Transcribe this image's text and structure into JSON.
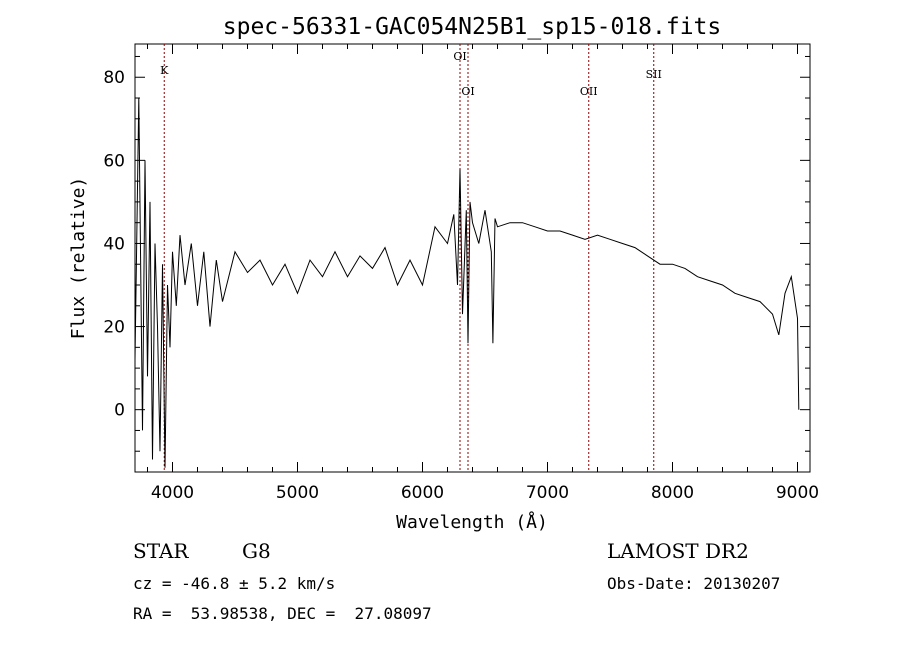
{
  "chart_data": {
    "type": "line",
    "title": "spec-56331-GAC054N25B1_sp15-018.fits",
    "xlabel": "Wavelength (Å)",
    "ylabel": "Flux (relative)",
    "xlim": [
      3700,
      9100
    ],
    "ylim": [
      -15,
      88
    ],
    "x_ticks": [
      4000,
      5000,
      6000,
      7000,
      8000,
      9000
    ],
    "y_ticks": [
      0,
      20,
      40,
      60,
      80
    ],
    "grid": false,
    "line_color": "#000000",
    "marker_color": "#8b0000",
    "lines": [
      {
        "label": "K",
        "wavelength": 3934
      },
      {
        "label": "OI",
        "wavelength": 6300
      },
      {
        "label": "OI",
        "wavelength": 6364
      },
      {
        "label": "OII",
        "wavelength": 7330
      },
      {
        "label": "SII",
        "wavelength": 7850
      }
    ],
    "series": [
      {
        "x": [
          3700,
          3730,
          3760,
          3780,
          3800,
          3820,
          3840,
          3860,
          3880,
          3900,
          3920,
          3940,
          3960,
          3980,
          4000,
          4030,
          4060,
          4100,
          4150,
          4200,
          4250,
          4300,
          4350,
          4400,
          4500,
          4600,
          4700,
          4800,
          4900,
          5000,
          5100,
          5200,
          5300,
          5400,
          5500,
          5600,
          5700,
          5800,
          5900,
          6000,
          6100,
          6200,
          6250,
          6280,
          6300,
          6320,
          6350,
          6364,
          6380,
          6400,
          6450,
          6500,
          6550,
          6563,
          6580,
          6600,
          6700,
          6800,
          6900,
          7000,
          7100,
          7200,
          7300,
          7400,
          7500,
          7600,
          7700,
          7800,
          7900,
          8000,
          8100,
          8200,
          8300,
          8400,
          8500,
          8600,
          8700,
          8800,
          8850,
          8900,
          8950,
          9000,
          9010
        ],
        "y": [
          12,
          75,
          -5,
          60,
          8,
          50,
          -12,
          40,
          20,
          -10,
          35,
          -14,
          30,
          15,
          38,
          25,
          42,
          30,
          40,
          25,
          38,
          20,
          36,
          26,
          38,
          33,
          36,
          30,
          35,
          28,
          36,
          32,
          38,
          32,
          37,
          34,
          39,
          30,
          36,
          30,
          44,
          40,
          47,
          30,
          58,
          23,
          48,
          16,
          50,
          45,
          40,
          48,
          38,
          16,
          46,
          44,
          45,
          45,
          44,
          43,
          43,
          42,
          41,
          42,
          41,
          40,
          39,
          37,
          35,
          35,
          34,
          32,
          31,
          30,
          28,
          27,
          26,
          23,
          18,
          28,
          32,
          22,
          0
        ]
      }
    ]
  },
  "info": {
    "object_class": "STAR",
    "subclass": "G8",
    "cz_line": "cz = -46.8 ± 5.2 km/s",
    "coord_line": "RA =  53.98538, DEC =  27.08097",
    "survey": "LAMOST DR2",
    "obs_date_line": "Obs-Date: 20130207"
  }
}
